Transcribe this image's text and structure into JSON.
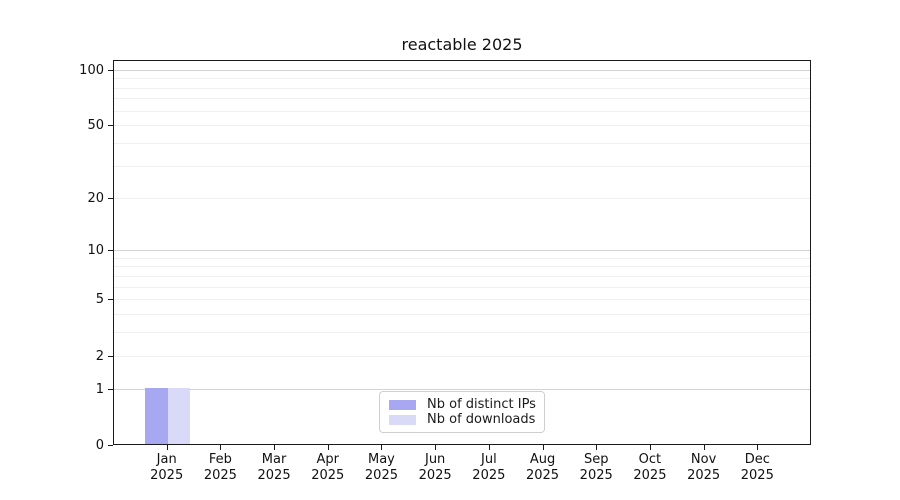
{
  "chart_data": {
    "type": "bar",
    "title": "reactable 2025",
    "categories": [
      "Jan",
      "Feb",
      "Mar",
      "Apr",
      "May",
      "Jun",
      "Jul",
      "Aug",
      "Sep",
      "Oct",
      "Nov",
      "Dec"
    ],
    "x_axis": {
      "year_line": "2025"
    },
    "series": [
      {
        "name": "Nb of distinct IPs",
        "color": "#a8a8f2",
        "values": [
          1,
          0,
          0,
          0,
          0,
          0,
          0,
          0,
          0,
          0,
          0,
          0
        ]
      },
      {
        "name": "Nb of downloads",
        "color": "#d9d9f8",
        "values": [
          1,
          0,
          0,
          0,
          0,
          0,
          0,
          0,
          0,
          0,
          0,
          0
        ]
      }
    ],
    "y_axis": {
      "scale": "log10(1+x)",
      "ticks": [
        0,
        1,
        2,
        5,
        10,
        20,
        50,
        100
      ],
      "major_gridlines": [
        1,
        10,
        100
      ],
      "minor_gridlines": [
        2,
        3,
        4,
        5,
        6,
        7,
        8,
        9,
        20,
        30,
        40,
        50,
        60,
        70,
        80,
        90
      ],
      "top_value": 113
    },
    "legend": {
      "position": "bottom-center",
      "entries": [
        "Nb of distinct IPs",
        "Nb of downloads"
      ]
    },
    "colors": {
      "major_grid": "#d2d2d2",
      "minor_grid": "#efefef",
      "spine": "#1a1a1a",
      "text": "#111111"
    },
    "grid": "horizontal",
    "bar_width_fraction": 0.42
  }
}
